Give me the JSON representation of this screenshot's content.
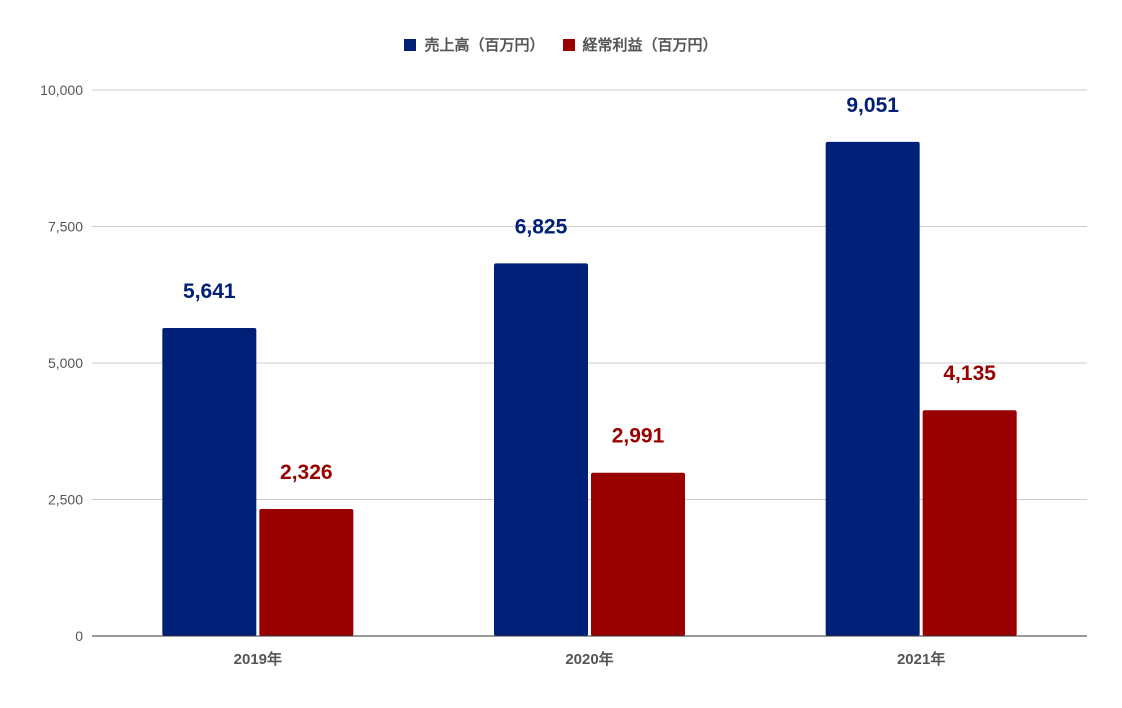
{
  "chart_data": {
    "type": "bar",
    "categories": [
      "2019年",
      "2020年",
      "2021年"
    ],
    "series": [
      {
        "name": "売上高（百万円）",
        "values": [
          5641,
          6825,
          9051
        ],
        "color": "#002077",
        "labels": [
          "5,641",
          "6,825",
          "9,051"
        ]
      },
      {
        "name": "経常利益（百万円）",
        "values": [
          2326,
          2991,
          4135
        ],
        "color": "#990000",
        "labels": [
          "2,326",
          "2,991",
          "4,135"
        ]
      }
    ],
    "yticks": [
      "0",
      "2,500",
      "5,000",
      "7,500",
      "10,000"
    ],
    "ylim": [
      0,
      10000
    ],
    "grid": true,
    "legend_position": "top-center",
    "title": "",
    "xlabel": "",
    "ylabel": ""
  }
}
